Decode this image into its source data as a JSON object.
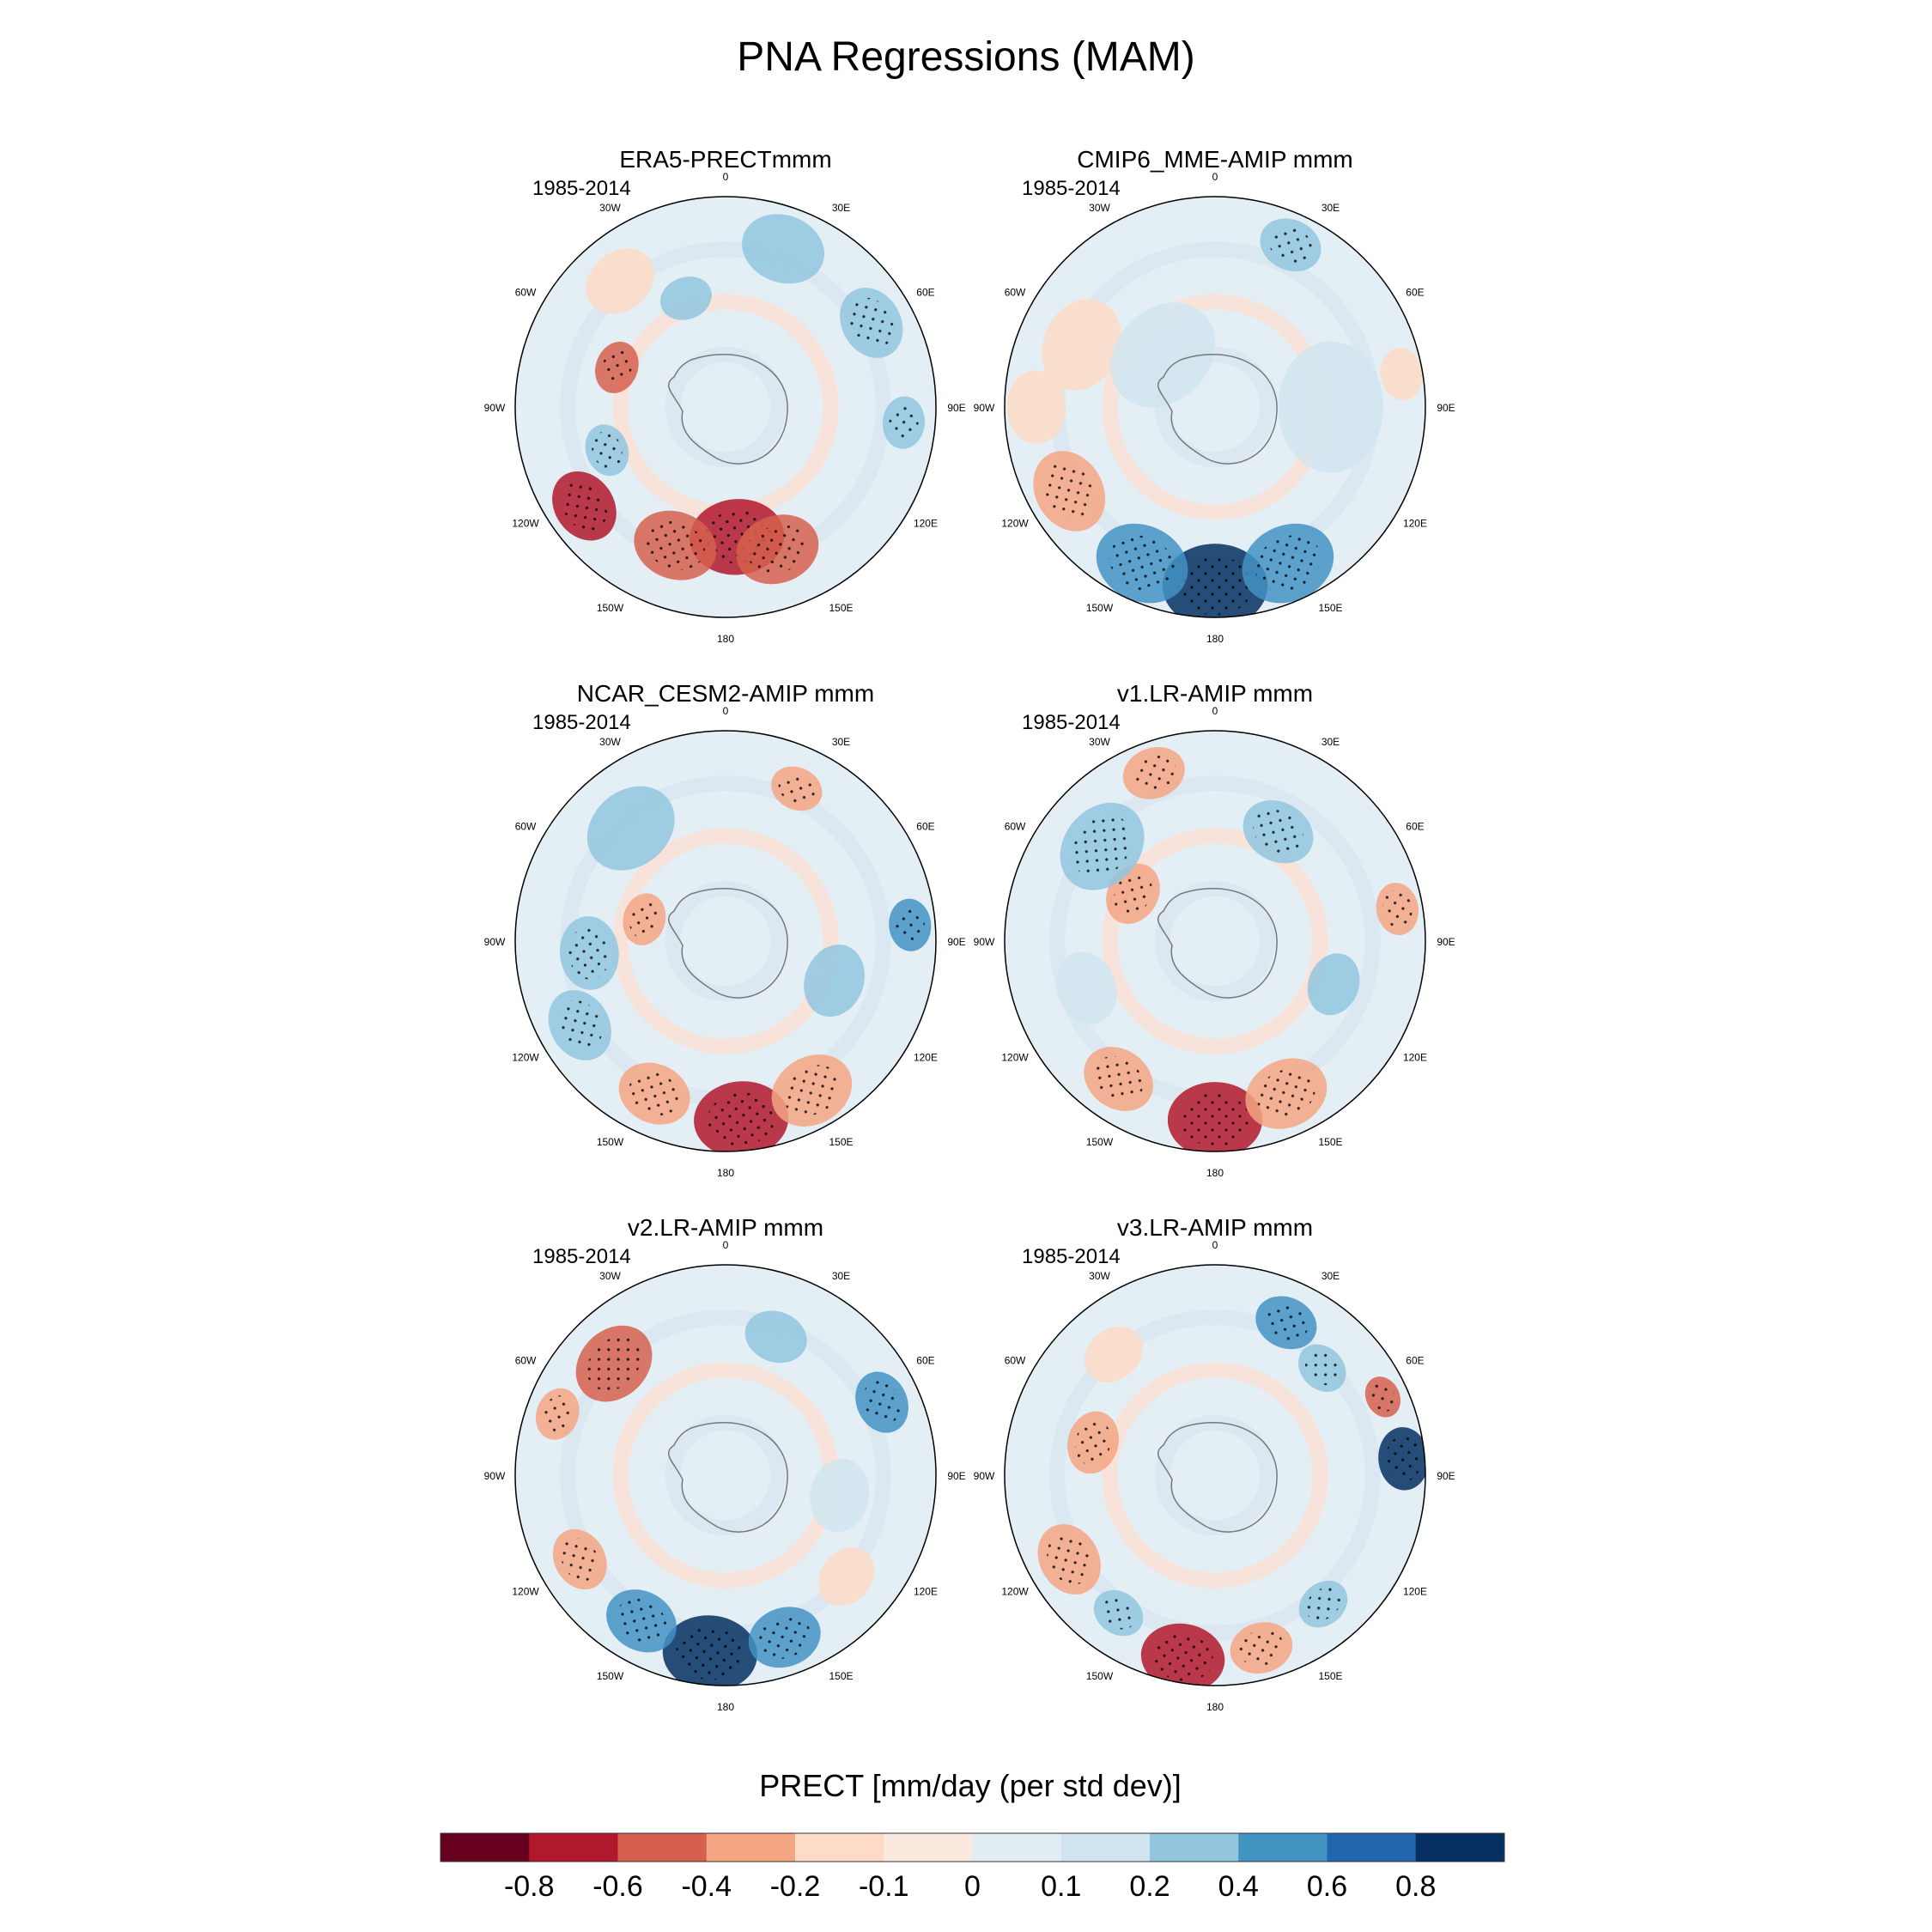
{
  "chart_data": {
    "type": "heatmap",
    "title": "PNA Regressions (MAM)",
    "projection": "south-polar-stereographic",
    "longitude_labels": [
      "0",
      "30E",
      "60E",
      "90E",
      "120E",
      "150E",
      "180",
      "150W",
      "120W",
      "90W",
      "60W",
      "30W"
    ],
    "panels": [
      {
        "title": "ERA5-PRECTmmm",
        "period": "1985-2014",
        "anomalies": [
          {
            "lon": 175,
            "r": 0.62,
            "value": -0.8,
            "size": 0.18
          },
          {
            "lon": 160,
            "r": 0.72,
            "value": -0.6,
            "size": 0.16
          },
          {
            "lon": 200,
            "r": 0.7,
            "value": -0.6,
            "size": 0.16
          },
          {
            "lon": 235,
            "r": 0.82,
            "value": -0.7,
            "size": 0.14
          },
          {
            "lon": 290,
            "r": 0.55,
            "value": -0.6,
            "size": 0.1
          },
          {
            "lon": 320,
            "r": 0.78,
            "value": -0.2,
            "size": 0.14
          },
          {
            "lon": 20,
            "r": 0.8,
            "value": 0.2,
            "size": 0.16
          },
          {
            "lon": 60,
            "r": 0.8,
            "value": 0.3,
            "size": 0.14
          },
          {
            "lon": 95,
            "r": 0.85,
            "value": 0.3,
            "size": 0.1
          },
          {
            "lon": 250,
            "r": 0.6,
            "value": 0.3,
            "size": 0.1
          },
          {
            "lon": 340,
            "r": 0.55,
            "value": 0.2,
            "size": 0.1
          }
        ]
      },
      {
        "title": "CMIP6_MME-AMIP  mmm",
        "period": "1985-2014",
        "anomalies": [
          {
            "lon": 180,
            "r": 0.85,
            "value": 0.8,
            "size": 0.2
          },
          {
            "lon": 155,
            "r": 0.82,
            "value": 0.5,
            "size": 0.18
          },
          {
            "lon": 205,
            "r": 0.82,
            "value": 0.5,
            "size": 0.18
          },
          {
            "lon": 240,
            "r": 0.8,
            "value": -0.3,
            "size": 0.16
          },
          {
            "lon": 295,
            "r": 0.7,
            "value": -0.2,
            "size": 0.18
          },
          {
            "lon": 270,
            "r": 0.85,
            "value": -0.2,
            "size": 0.14
          },
          {
            "lon": 315,
            "r": 0.35,
            "value": 0.1,
            "size": 0.22
          },
          {
            "lon": 90,
            "r": 0.55,
            "value": 0.1,
            "size": 0.25
          },
          {
            "lon": 25,
            "r": 0.85,
            "value": 0.3,
            "size": 0.12
          },
          {
            "lon": 80,
            "r": 0.9,
            "value": -0.2,
            "size": 0.1
          }
        ]
      },
      {
        "title": "NCAR_CESM2-AMIP  mmm",
        "period": "1985-2014",
        "anomalies": [
          {
            "lon": 175,
            "r": 0.85,
            "value": -0.8,
            "size": 0.18
          },
          {
            "lon": 150,
            "r": 0.82,
            "value": -0.4,
            "size": 0.16
          },
          {
            "lon": 205,
            "r": 0.8,
            "value": -0.4,
            "size": 0.14
          },
          {
            "lon": 240,
            "r": 0.8,
            "value": 0.3,
            "size": 0.14
          },
          {
            "lon": 265,
            "r": 0.65,
            "value": 0.3,
            "size": 0.14
          },
          {
            "lon": 285,
            "r": 0.4,
            "value": -0.3,
            "size": 0.1
          },
          {
            "lon": 25,
            "r": 0.8,
            "value": -0.3,
            "size": 0.1
          },
          {
            "lon": 85,
            "r": 0.88,
            "value": 0.4,
            "size": 0.1
          },
          {
            "lon": 110,
            "r": 0.55,
            "value": 0.2,
            "size": 0.14
          },
          {
            "lon": 320,
            "r": 0.7,
            "value": 0.2,
            "size": 0.18
          }
        ]
      },
      {
        "title": "v1.LR-AMIP  mmm",
        "period": "1985-2014",
        "anomalies": [
          {
            "lon": 180,
            "r": 0.85,
            "value": -0.8,
            "size": 0.18
          },
          {
            "lon": 155,
            "r": 0.8,
            "value": -0.4,
            "size": 0.16
          },
          {
            "lon": 215,
            "r": 0.8,
            "value": -0.4,
            "size": 0.14
          },
          {
            "lon": 300,
            "r": 0.45,
            "value": -0.4,
            "size": 0.12
          },
          {
            "lon": 310,
            "r": 0.7,
            "value": 0.3,
            "size": 0.18
          },
          {
            "lon": 30,
            "r": 0.6,
            "value": 0.3,
            "size": 0.14
          },
          {
            "lon": 80,
            "r": 0.88,
            "value": -0.4,
            "size": 0.1
          },
          {
            "lon": 110,
            "r": 0.6,
            "value": 0.2,
            "size": 0.12
          },
          {
            "lon": 340,
            "r": 0.85,
            "value": -0.3,
            "size": 0.12
          },
          {
            "lon": 250,
            "r": 0.65,
            "value": 0.1,
            "size": 0.14
          }
        ]
      },
      {
        "title": "v2.LR-AMIP  mmm",
        "period": "1985-2014",
        "anomalies": [
          {
            "lon": 185,
            "r": 0.85,
            "value": 0.8,
            "size": 0.18
          },
          {
            "lon": 160,
            "r": 0.82,
            "value": 0.4,
            "size": 0.14
          },
          {
            "lon": 210,
            "r": 0.8,
            "value": 0.4,
            "size": 0.14
          },
          {
            "lon": 315,
            "r": 0.75,
            "value": -0.5,
            "size": 0.16
          },
          {
            "lon": 290,
            "r": 0.85,
            "value": -0.4,
            "size": 0.1
          },
          {
            "lon": 65,
            "r": 0.82,
            "value": 0.4,
            "size": 0.12
          },
          {
            "lon": 20,
            "r": 0.7,
            "value": 0.2,
            "size": 0.12
          },
          {
            "lon": 240,
            "r": 0.8,
            "value": -0.3,
            "size": 0.12
          },
          {
            "lon": 130,
            "r": 0.75,
            "value": -0.2,
            "size": 0.12
          },
          {
            "lon": 100,
            "r": 0.55,
            "value": 0.1,
            "size": 0.14
          }
        ]
      },
      {
        "title": "v3.LR-AMIP  mmm",
        "period": "1985-2014",
        "anomalies": [
          {
            "lon": 190,
            "r": 0.88,
            "value": -0.8,
            "size": 0.16
          },
          {
            "lon": 165,
            "r": 0.85,
            "value": -0.4,
            "size": 0.12
          },
          {
            "lon": 85,
            "r": 0.9,
            "value": 0.8,
            "size": 0.12
          },
          {
            "lon": 25,
            "r": 0.8,
            "value": 0.4,
            "size": 0.12
          },
          {
            "lon": 45,
            "r": 0.72,
            "value": 0.3,
            "size": 0.1
          },
          {
            "lon": 240,
            "r": 0.8,
            "value": -0.3,
            "size": 0.14
          },
          {
            "lon": 215,
            "r": 0.8,
            "value": 0.3,
            "size": 0.1
          },
          {
            "lon": 140,
            "r": 0.8,
            "value": 0.3,
            "size": 0.1
          },
          {
            "lon": 285,
            "r": 0.6,
            "value": -0.3,
            "size": 0.12
          },
          {
            "lon": 320,
            "r": 0.75,
            "value": -0.2,
            "size": 0.12
          },
          {
            "lon": 65,
            "r": 0.88,
            "value": -0.5,
            "size": 0.08
          }
        ]
      }
    ],
    "colorbar": {
      "label": "PRECT [mm/day (per std dev)]",
      "tick_labels": [
        "-0.8",
        "-0.6",
        "-0.4",
        "-0.2",
        "-0.1",
        "0",
        "0.1",
        "0.2",
        "0.4",
        "0.6",
        "0.8"
      ],
      "levels": [
        -0.8,
        -0.6,
        -0.4,
        -0.2,
        -0.1,
        0,
        0.1,
        0.2,
        0.4,
        0.6,
        0.8
      ],
      "colors": [
        "#67001f",
        "#b2182b",
        "#d6604d",
        "#f4a582",
        "#fddbc7",
        "#fbe9e0",
        "#e2ecf3",
        "#d1e5f0",
        "#92c5de",
        "#4393c3",
        "#2166ac",
        "#053061"
      ]
    }
  }
}
